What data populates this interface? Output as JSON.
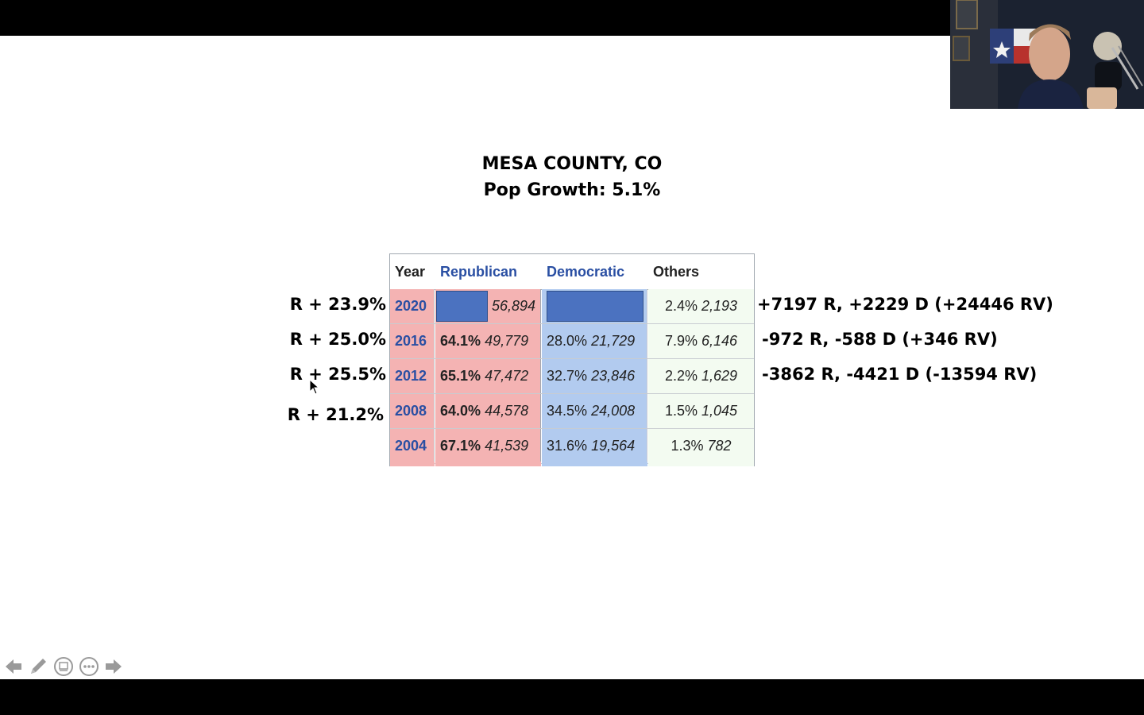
{
  "slide": {
    "title": "MESA COUNTY, CO",
    "subtitle": "Pop Growth: 5.1%"
  },
  "left_margins": [
    {
      "year": "2020",
      "text": "R + 23.9%"
    },
    {
      "year": "2016",
      "text": "R + 25.0%"
    },
    {
      "year": "2012",
      "text": "R + 25.5%"
    },
    {
      "year": "2008",
      "text": "R + 21.2%"
    }
  ],
  "right_changes": [
    {
      "year": "2020",
      "text": "+7197 R, +2229 D (+24446 RV)"
    },
    {
      "year": "2016",
      "text": "-972 R, -588 D (+346 RV)"
    },
    {
      "year": "2012",
      "text": "-3862 R, -4421 D (-13594 RV)"
    }
  ],
  "table": {
    "headers": {
      "year": "Year",
      "republican": "Republican",
      "democratic": "Democratic",
      "others": "Others"
    },
    "rows": [
      {
        "year": "2020",
        "rep_pct": "",
        "rep_votes": "56,894",
        "dem_pct": "",
        "dem_votes": "",
        "oth_pct": "2.4%",
        "oth_votes": "2,193"
      },
      {
        "year": "2016",
        "rep_pct": "64.1%",
        "rep_votes": "49,779",
        "dem_pct": "28.0%",
        "dem_votes": "21,729",
        "oth_pct": "7.9%",
        "oth_votes": "6,146"
      },
      {
        "year": "2012",
        "rep_pct": "65.1%",
        "rep_votes": "47,472",
        "dem_pct": "32.7%",
        "dem_votes": "23,846",
        "oth_pct": "2.2%",
        "oth_votes": "1,629"
      },
      {
        "year": "2008",
        "rep_pct": "64.0%",
        "rep_votes": "44,578",
        "dem_pct": "34.5%",
        "dem_votes": "24,008",
        "oth_pct": "1.5%",
        "oth_votes": "1,045"
      },
      {
        "year": "2004",
        "rep_pct": "67.1%",
        "rep_votes": "41,539",
        "dem_pct": "31.6%",
        "dem_votes": "19,564",
        "oth_pct": "1.3%",
        "oth_votes": "782"
      }
    ]
  },
  "nav": {
    "prev": "previous-slide-arrow-icon",
    "pen": "pen-icon",
    "slides": "slide-overview-icon",
    "more": "more-options-icon",
    "next": "next-slide-arrow-icon"
  },
  "colors": {
    "rep_fill": "#f4b3b3",
    "dem_fill": "#b2cbef",
    "oth_fill": "#f3fbf1",
    "bar_blue": "#4b72c0",
    "link_blue": "#2a4fa3"
  }
}
